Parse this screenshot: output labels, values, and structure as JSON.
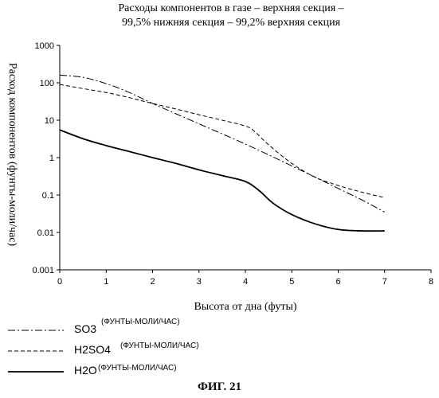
{
  "figure_caption": "ФИГ. 21",
  "chart_data": {
    "type": "line",
    "title_line1": "Расходы компонентов в газе – верхняя секция –",
    "title_line2": "99,5% нижняя секция – 99,2% верхняя секция",
    "xlabel": "Высота от дна (футы)",
    "ylabel": "Расход компонентов (фунты-моли/час)",
    "xlim": [
      0,
      8
    ],
    "ylim": [
      0.001,
      1000
    ],
    "yscale": "log",
    "xticks": [
      "0",
      "1",
      "2",
      "3",
      "4",
      "5",
      "6",
      "7",
      "8"
    ],
    "yticks": [
      "0.001",
      "0.01",
      "0.1",
      "1",
      "10",
      "100",
      "1000"
    ],
    "legend_placement": "bottom-left, below plot",
    "series": [
      {
        "name": "SO3",
        "unit": "(ФУНТЫ-МОЛИ/ЧАС)",
        "style": "dash-dot",
        "x": [
          0,
          0.5,
          1,
          1.5,
          2,
          3,
          4,
          5,
          6,
          6.5,
          7
        ],
        "y": [
          160,
          140,
          95,
          55,
          28,
          8,
          2.3,
          0.6,
          0.15,
          0.075,
          0.035
        ]
      },
      {
        "name": "H2SO4",
        "unit": "(ФУНТЫ-МОЛИ/ЧАС)",
        "style": "dashed",
        "x": [
          0,
          0.5,
          1,
          1.5,
          2,
          2.5,
          3,
          3.5,
          4,
          4.2,
          4.5,
          5,
          5.5,
          6,
          6.5,
          7
        ],
        "y": [
          90,
          70,
          55,
          40,
          28,
          20,
          14,
          10,
          7,
          5,
          2.2,
          0.7,
          0.3,
          0.18,
          0.12,
          0.085
        ]
      },
      {
        "name": "H2O",
        "unit": "(ФУНТЫ-МОЛИ/ЧАС)",
        "style": "solid",
        "x": [
          0,
          0.5,
          1,
          1.5,
          2,
          2.5,
          3,
          3.5,
          4,
          4.3,
          4.6,
          5,
          5.5,
          6,
          6.5,
          7
        ],
        "y": [
          5.5,
          3.2,
          2.1,
          1.45,
          1.0,
          0.7,
          0.47,
          0.33,
          0.23,
          0.13,
          0.06,
          0.03,
          0.017,
          0.012,
          0.011,
          0.011
        ]
      }
    ]
  }
}
